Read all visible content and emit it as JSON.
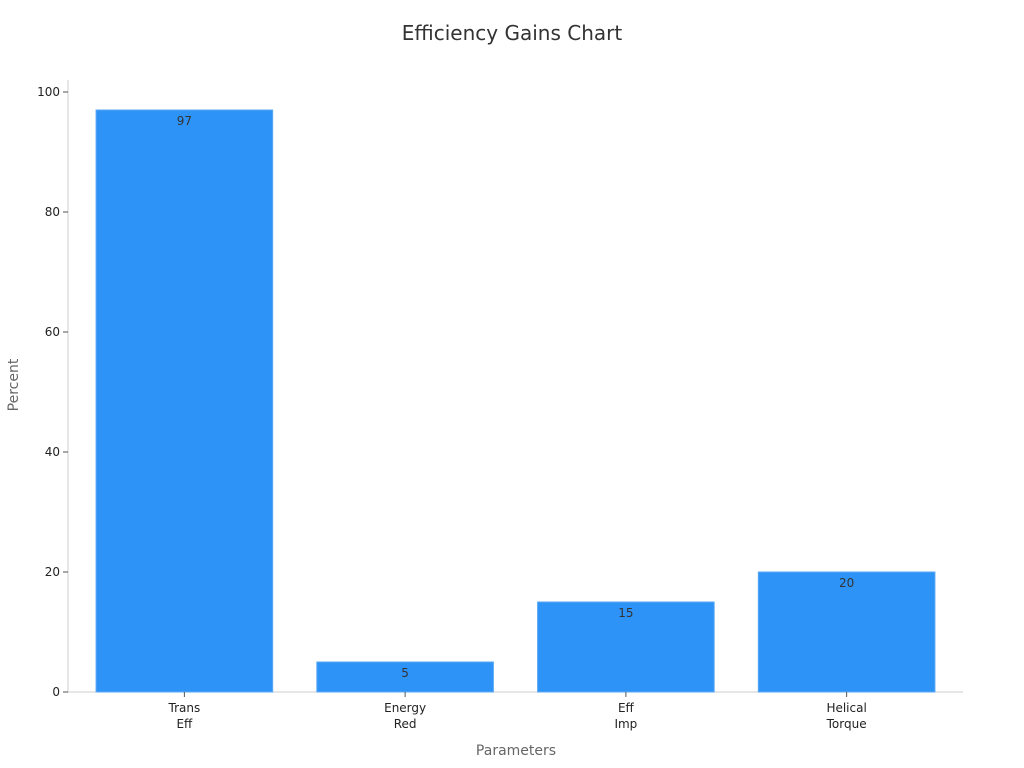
{
  "chart_data": {
    "type": "bar",
    "title": "Efficiency Gains Chart",
    "xlabel": "Parameters",
    "ylabel": "Percent",
    "categories": [
      [
        "Trans",
        "Eff"
      ],
      [
        "Energy",
        "Red"
      ],
      [
        "Eff",
        "Imp"
      ],
      [
        "Helical",
        "Torque"
      ]
    ],
    "values": [
      97,
      5,
      15,
      20
    ],
    "ylim": [
      0,
      100
    ],
    "yticks": [
      0,
      20,
      40,
      60,
      80,
      100
    ],
    "grid": false,
    "legend": "none",
    "colors": {
      "bar": "#2e93f7",
      "bar_edge": "#5aa9f5"
    }
  }
}
